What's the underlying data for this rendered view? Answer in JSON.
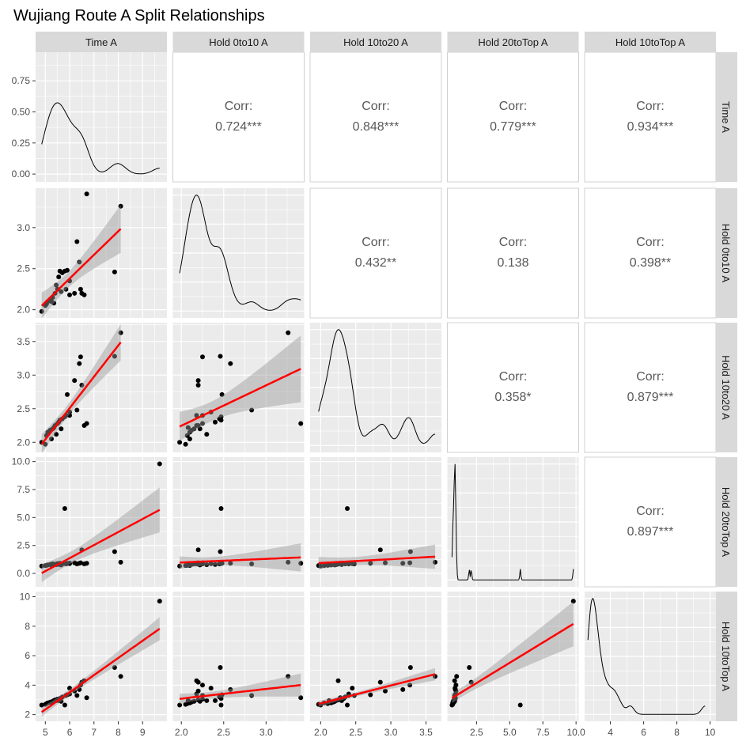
{
  "title": "Wujiang Route A Split Relationships",
  "variables": [
    "Time A",
    "Hold 0to10 A",
    "Hold 10to20 A",
    "Hold 20toTop A",
    "Hold 10toTop A"
  ],
  "correlations": {
    "0_1": {
      "label": "Corr:",
      "value": "0.724***"
    },
    "0_2": {
      "label": "Corr:",
      "value": "0.848***"
    },
    "0_3": {
      "label": "Corr:",
      "value": "0.779***"
    },
    "0_4": {
      "label": "Corr:",
      "value": "0.934***"
    },
    "1_2": {
      "label": "Corr:",
      "value": "0.432**"
    },
    "1_3": {
      "label": "Corr:",
      "value": "0.138"
    },
    "1_4": {
      "label": "Corr:",
      "value": "0.398**"
    },
    "2_3": {
      "label": "Corr:",
      "value": "0.358*"
    },
    "2_4": {
      "label": "Corr:",
      "value": "0.879***"
    },
    "3_4": {
      "label": "Corr:",
      "value": "0.897***"
    }
  },
  "colors": {
    "panel": "#EBEBEB",
    "grid": "#FFFFFF",
    "strip": "#D9D9D9",
    "fit": "#FF0000",
    "band": "#999999",
    "point": "#000000"
  },
  "chart_data": {
    "type": "scatter-matrix",
    "title": "Wujiang Route A Split Relationships",
    "lower": "scatter with linear fit and confidence band",
    "diag": "density",
    "upper": "correlation",
    "axes": [
      {
        "name": "Time A",
        "range": [
          4.6,
          10.0
        ],
        "ticks": [
          5,
          6,
          7,
          8,
          9
        ],
        "tick_labels": [
          "5",
          "6",
          "7",
          "8",
          "9"
        ]
      },
      {
        "name": "Hold 0to10 A",
        "range": [
          1.9,
          3.48
        ],
        "ticks": [
          2.0,
          2.5,
          3.0
        ],
        "tick_labels": [
          "2.0",
          "2.5",
          "3.0"
        ]
      },
      {
        "name": "Hold 10to20 A",
        "range": [
          1.85,
          3.78
        ],
        "ticks": [
          2.0,
          2.5,
          3.0,
          3.5
        ],
        "tick_labels": [
          "2.0",
          "2.5",
          "3.0",
          "3.5"
        ]
      },
      {
        "name": "Hold 20toTop A",
        "range": [
          -1.2,
          10.4
        ],
        "ticks": [
          0,
          2.5,
          5,
          7.5,
          10
        ],
        "tick_labels": [
          "0.0",
          "2.5",
          "5.0",
          "7.5",
          "10.0"
        ]
      },
      {
        "name": "Hold 10toTop A",
        "range": [
          1.55,
          10.35
        ],
        "ticks": [
          2,
          4,
          6,
          8,
          10
        ],
        "tick_labels": [
          "2",
          "4",
          "6",
          "8",
          "10"
        ]
      }
    ],
    "x_tick_labels_bottom": [
      [
        "5",
        "6",
        "7",
        "8",
        "9"
      ],
      [
        "2.0",
        "2.5",
        "3.0"
      ],
      [
        "2.0",
        "2.5",
        "3.0",
        "3.5"
      ],
      [
        "2.5",
        "5.0",
        "7.5",
        "10.0"
      ],
      [
        "4",
        "6",
        "8",
        "10"
      ]
    ],
    "x_ticks_bottom": [
      [
        5,
        6,
        7,
        8,
        9
      ],
      [
        2.0,
        2.5,
        3.0
      ],
      [
        2.0,
        2.5,
        3.0,
        3.5
      ],
      [
        2.5,
        5,
        7.5,
        10
      ],
      [
        4,
        6,
        8,
        10
      ]
    ],
    "x_range_bottom": [
      [
        4.6,
        10.0
      ],
      [
        1.9,
        3.45
      ],
      [
        1.85,
        3.72
      ],
      [
        0.3,
        10.2
      ],
      [
        2.45,
        10.35
      ]
    ],
    "density_axis": {
      "range": [
        -0.063,
        0.98
      ],
      "ticks": [
        0,
        0.25,
        0.5,
        0.75
      ],
      "tick_labels": [
        "0.00",
        "0.25",
        "0.50",
        "0.75"
      ]
    },
    "observations": [
      [
        4.85,
        1.98,
        2.0,
        0.65,
        2.65
      ],
      [
        5.0,
        2.05,
        1.97,
        0.7,
        2.7
      ],
      [
        5.05,
        2.07,
        2.1,
        0.72,
        2.75
      ],
      [
        5.1,
        2.1,
        2.15,
        0.75,
        2.8
      ],
      [
        5.2,
        2.12,
        2.18,
        0.8,
        2.85
      ],
      [
        5.3,
        2.15,
        2.2,
        0.85,
        2.9
      ],
      [
        5.35,
        2.08,
        2.22,
        0.78,
        2.95
      ],
      [
        5.4,
        2.2,
        2.25,
        0.82,
        3.0
      ],
      [
        5.5,
        2.25,
        2.28,
        0.88,
        3.05
      ],
      [
        5.55,
        2.4,
        2.3,
        0.8,
        2.95
      ],
      [
        5.6,
        2.47,
        2.33,
        0.9,
        3.1
      ],
      [
        5.65,
        2.22,
        2.2,
        0.75,
        2.9
      ],
      [
        5.7,
        2.45,
        2.35,
        0.85,
        3.2
      ],
      [
        5.8,
        2.47,
        2.38,
        5.8,
        2.65
      ],
      [
        5.85,
        2.25,
        2.4,
        0.85,
        3.3
      ],
      [
        5.9,
        2.48,
        2.71,
        0.9,
        3.35
      ],
      [
        6.0,
        2.18,
        2.4,
        0.92,
        3.4
      ],
      [
        6.0,
        2.35,
        2.45,
        0.88,
        3.8
      ],
      [
        6.2,
        2.2,
        2.92,
        0.95,
        3.6
      ],
      [
        6.3,
        2.83,
        2.48,
        0.85,
        3.3
      ],
      [
        6.4,
        2.58,
        3.17,
        0.9,
        3.7
      ],
      [
        6.45,
        2.25,
        3.27,
        0.95,
        4.0
      ],
      [
        6.5,
        2.2,
        2.85,
        2.1,
        4.2
      ],
      [
        6.6,
        2.18,
        2.25,
        0.85,
        4.3
      ],
      [
        6.7,
        3.41,
        2.28,
        0.9,
        3.15
      ],
      [
        7.85,
        2.46,
        3.28,
        1.95,
        5.2
      ],
      [
        8.1,
        3.26,
        3.63,
        1.0,
        4.6
      ],
      [
        9.7,
        null,
        null,
        9.8,
        9.7
      ],
      [
        5.25,
        2.1,
        2.05,
        0.7,
        2.8
      ],
      [
        5.45,
        2.3,
        2.12,
        0.78,
        2.95
      ]
    ]
  }
}
